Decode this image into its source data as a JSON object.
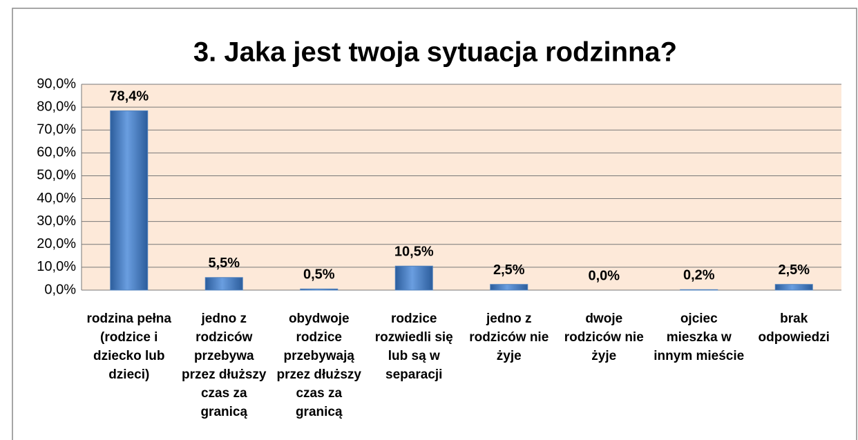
{
  "chart_data": {
    "type": "bar",
    "title": "3. Jaka jest twoja sytuacja rodzinna?",
    "categories": [
      "rodzina pełna (rodzice i dziecko lub dzieci)",
      "jedno z rodziców przebywa przez dłuższy czas za granicą",
      "obydwoje rodzice przebywają przez dłuższy czas za granicą",
      "rodzice rozwiedli się lub są w separacji",
      "jedno z rodziców nie żyje",
      "dwoje rodziców nie żyje",
      "ojciec mieszka w innym mieście",
      "brak odpowiedzi"
    ],
    "values": [
      78.4,
      5.5,
      0.5,
      10.5,
      2.5,
      0.0,
      0.2,
      2.5
    ],
    "value_labels": [
      "78,4%",
      "5,5%",
      "0,5%",
      "10,5%",
      "2,5%",
      "0,0%",
      "0,2%",
      "2,5%"
    ],
    "color": "#4f81bd",
    "ylim": [
      0,
      90
    ],
    "yticks": [
      {
        "value": 0,
        "label": "0,0%"
      },
      {
        "value": 10,
        "label": "10,0%"
      },
      {
        "value": 20,
        "label": "20,0%"
      },
      {
        "value": 30,
        "label": "30,0%"
      },
      {
        "value": 40,
        "label": "40,0%"
      },
      {
        "value": 50,
        "label": "50,0%"
      },
      {
        "value": 60,
        "label": "60,0%"
      },
      {
        "value": 70,
        "label": "70,0%"
      },
      {
        "value": 80,
        "label": "80,0%"
      },
      {
        "value": 90,
        "label": "90,0%"
      }
    ],
    "grid": true
  }
}
